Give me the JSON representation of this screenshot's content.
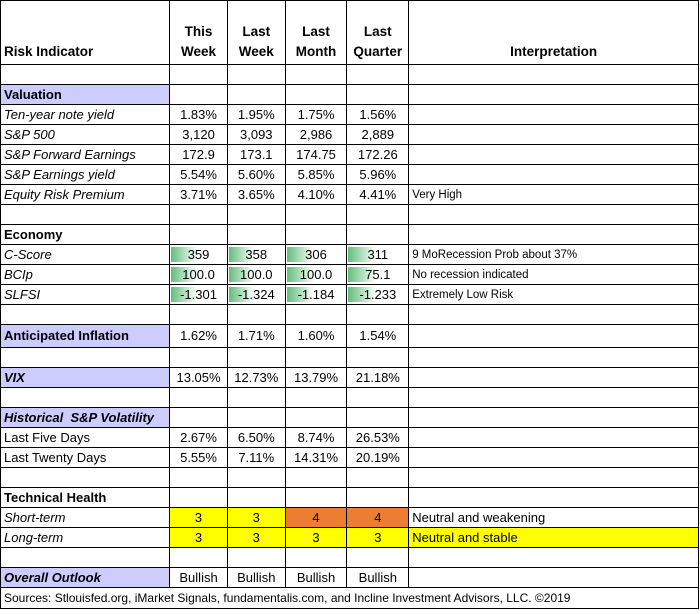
{
  "headers": {
    "indicator": "Risk Indicator",
    "c1a": "This",
    "c1b": "Week",
    "c2a": "Last",
    "c2b": "Week",
    "c3a": "Last",
    "c3b": "Month",
    "c4a": "Last",
    "c4b": "Quarter",
    "interpretation": "Interpretation"
  },
  "valuation": {
    "title": "Valuation",
    "rows": [
      {
        "label": "Ten-year note yield",
        "v": [
          "1.83%",
          "1.95%",
          "1.75%",
          "1.56%"
        ],
        "note": ""
      },
      {
        "label": "S&P 500",
        "v": [
          "3,120",
          "3,093",
          "2,986",
          "2,889"
        ],
        "note": ""
      },
      {
        "label": "S&P Forward Earnings",
        "v": [
          "172.9",
          "173.1",
          "174.75",
          "172.26"
        ],
        "note": ""
      },
      {
        "label": "S&P Earnings yield",
        "v": [
          "5.54%",
          "5.60%",
          "5.85%",
          "5.96%"
        ],
        "note": ""
      },
      {
        "label": "Equity Risk Premium",
        "v": [
          "3.71%",
          "3.65%",
          "4.10%",
          "4.41%"
        ],
        "note": "Very High"
      }
    ]
  },
  "economy": {
    "title": "Economy",
    "rows": [
      {
        "label": "C-Score",
        "v": [
          "359",
          "358",
          "306",
          "311"
        ],
        "note": "9 MoRecession Prob about 37%"
      },
      {
        "label": "BCIp",
        "v": [
          "100.0",
          "100.0",
          "100.0",
          "75.1"
        ],
        "note": "No recession indicated"
      },
      {
        "label": "SLFSI",
        "v": [
          "-1.301",
          "-1.324",
          "-1.184",
          "-1.233"
        ],
        "note": "Extremely Low Risk"
      }
    ]
  },
  "inflation": {
    "label": "Anticipated Inflation",
    "v": [
      "1.62%",
      "1.71%",
      "1.60%",
      "1.54%"
    ]
  },
  "vix": {
    "label": "VIX",
    "v": [
      "13.05%",
      "12.73%",
      "13.79%",
      "21.18%"
    ]
  },
  "volatility": {
    "title": "Historical  S&P Volatility",
    "rows": [
      {
        "label": "Last Five Days",
        "v": [
          "2.67%",
          "6.50%",
          "8.74%",
          "26.53%"
        ]
      },
      {
        "label": "Last Twenty Days",
        "v": [
          "5.55%",
          "7.11%",
          "14.31%",
          "20.19%"
        ]
      }
    ]
  },
  "technical": {
    "title": "Technical Health",
    "rows": [
      {
        "label": "Short-term",
        "v": [
          "3",
          "3",
          "4",
          "4"
        ],
        "note": "Neutral and weakening"
      },
      {
        "label": "Long-term",
        "v": [
          "3",
          "3",
          "3",
          "3"
        ],
        "note": "Neutral and stable"
      }
    ]
  },
  "outlook": {
    "label": "Overall Outlook",
    "v": [
      "Bullish",
      "Bullish",
      "Bullish",
      "Bullish"
    ]
  },
  "footer": "Sources: Stlouisfed.org,  iMarket Signals, fundamentalis.com, and Incline Investment Advisors, LLC. ©2019",
  "colors": {
    "section_bg": "#ccccff",
    "yellow": "#ffff00",
    "orange": "#ed7d31",
    "bar_green": "#63be7b"
  }
}
